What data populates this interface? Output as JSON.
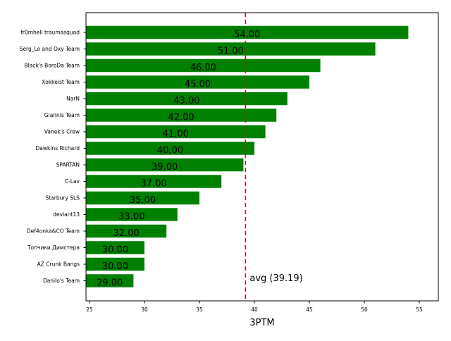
{
  "chart_data": {
    "type": "bar",
    "orientation": "horizontal",
    "title": "",
    "xlabel": "3PTM",
    "ylabel": "",
    "xlim": [
      24.68,
      56.73
    ],
    "xticks": [
      25,
      30,
      35,
      40,
      45,
      50,
      55
    ],
    "categories": [
      "fr0mhell traumasquad",
      "Serg_Lo and Oxy Team",
      "Black's BoroDa Team",
      "Xokkeist Team",
      "NarN",
      "Giannis Team",
      "Vanek's Crew",
      "Dawkins Richard",
      "SPARTAN",
      "C-Lav",
      "Starbury SLS",
      "deviant13",
      "Def4onka&CO Team",
      "Топчики Димстера",
      "AZ Crunk Bangs",
      "Danilo's Team"
    ],
    "values": [
      54,
      51,
      46,
      45,
      43,
      42,
      41,
      40,
      39,
      37,
      35,
      33,
      32,
      30,
      30,
      29
    ],
    "value_labels": [
      "54.00",
      "51.00",
      "46.00",
      "45.00",
      "43.00",
      "42.00",
      "41.00",
      "40.00",
      "39.00",
      "37.00",
      "35.00",
      "33.00",
      "32.00",
      "30.00",
      "30.00",
      "29.00"
    ],
    "average": 39.19,
    "average_label": "avg (39.19)",
    "bar_color": "#008000",
    "avg_line_color": "#ff0000",
    "grid": false
  }
}
